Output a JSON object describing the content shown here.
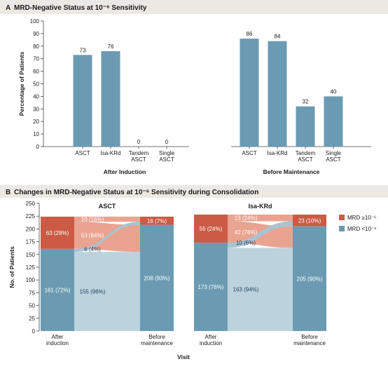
{
  "chart_data": [
    {
      "type": "bar",
      "panel": "A",
      "title": "MRD-Negative Status at 10⁻⁶ Sensitivity",
      "ylabel": "Percentage of Patients",
      "ylim": [
        0,
        100
      ],
      "yticks": [
        0,
        10,
        20,
        30,
        40,
        50,
        60,
        70,
        80,
        90,
        100
      ],
      "groups": [
        {
          "label": "After Induction",
          "categories": [
            "ASCT",
            "Isa-KRd",
            "Tandem\nASCT",
            "Single\nASCT"
          ],
          "values": [
            73,
            76,
            0,
            0
          ]
        },
        {
          "label": "Before Maintenance",
          "categories": [
            "ASCT",
            "Isa-KRd",
            "Tandem\nASCT",
            "Single\nASCT"
          ],
          "values": [
            86,
            84,
            32,
            40
          ]
        }
      ],
      "colors": {
        "bar": "#6b9bb2"
      }
    },
    {
      "type": "area",
      "panel": "B",
      "title": "Changes in MRD-Negative Status at 10⁻⁶ Sensitivity during Consolidation",
      "ylabel": "No. of Patients",
      "xlabel": "Visit",
      "ylim": [
        0,
        250
      ],
      "yticks": [
        0,
        25,
        50,
        75,
        100,
        125,
        150,
        175,
        200,
        225,
        250
      ],
      "x_categories": [
        "After\ninduction",
        "Before\nmaintenance"
      ],
      "legend": {
        "placement": "right",
        "entries": [
          {
            "label": "MRD ≥10⁻⁶",
            "color": "#cc5a45"
          },
          {
            "label": "MRD <10⁻⁶",
            "color": "#6b9bb2"
          }
        ]
      },
      "subpanels": [
        {
          "title": "ASCT",
          "after_induction": {
            "positive": 63,
            "positive_label": "63 (28%)",
            "negative": 161,
            "negative_label": "161 (72%)"
          },
          "before_maintenance": {
            "positive": 16,
            "positive_label": "16 (7%)",
            "negative": 208,
            "negative_label": "208 (93%)"
          },
          "flows": {
            "pos_to_pos": 10,
            "pos_to_pos_label": "10 (16%)",
            "pos_to_neg": 53,
            "pos_to_neg_label": "53 (84%)",
            "neg_to_pos": 6,
            "neg_to_pos_label": "6 (4%)",
            "neg_to_neg": 155,
            "neg_to_neg_label": "155 (96%)"
          }
        },
        {
          "title": "Isa-KRd",
          "after_induction": {
            "positive": 55,
            "positive_label": "55 (24%)",
            "negative": 173,
            "negative_label": "173 (76%)"
          },
          "before_maintenance": {
            "positive": 23,
            "positive_label": "23 (10%)",
            "negative": 205,
            "negative_label": "205 (90%)"
          },
          "flows": {
            "pos_to_pos": 13,
            "pos_to_pos_label": "13 (24%)",
            "pos_to_neg": 42,
            "pos_to_neg_label": "42 (76%)",
            "neg_to_pos": 10,
            "neg_to_pos_label": "10 (6%)",
            "neg_to_neg": 163,
            "neg_to_neg_label": "163 (94%)"
          }
        }
      ],
      "colors": {
        "positive": "#cc5a45",
        "negative": "#6b9bb2",
        "flow_positive": "#eaa390",
        "flow_negative": "#bcd3de"
      }
    }
  ],
  "labels": {
    "panel_a_letter": "A",
    "panel_b_letter": "B"
  }
}
